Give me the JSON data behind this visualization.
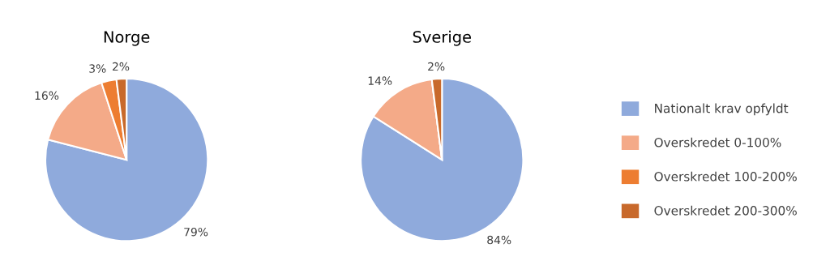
{
  "chart_data": [
    {
      "type": "pie",
      "title": "Norge",
      "categories": [
        null,
        null,
        null,
        null
      ],
      "values": [
        79,
        16,
        3,
        2
      ],
      "colors": [
        "#8faadc",
        "#f4aa88",
        "#ed7d31",
        "#c8692b"
      ],
      "value_labels": [
        "79%",
        "16%",
        "3%",
        "2%"
      ]
    },
    {
      "type": "pie",
      "title": "Sverige",
      "categories": [
        "Nationalt krav opfyldt",
        "Overskredet 0-100%",
        "Overskredet 100-200%",
        "Overskredet 200-300%"
      ],
      "values": [
        84,
        14,
        0,
        2
      ],
      "colors": [
        "#8faadc",
        "#f4aa88",
        "#ed7d31",
        "#c8692b"
      ],
      "value_labels": [
        "84%",
        "14%",
        null,
        "2%"
      ],
      "legend": "right"
    }
  ]
}
